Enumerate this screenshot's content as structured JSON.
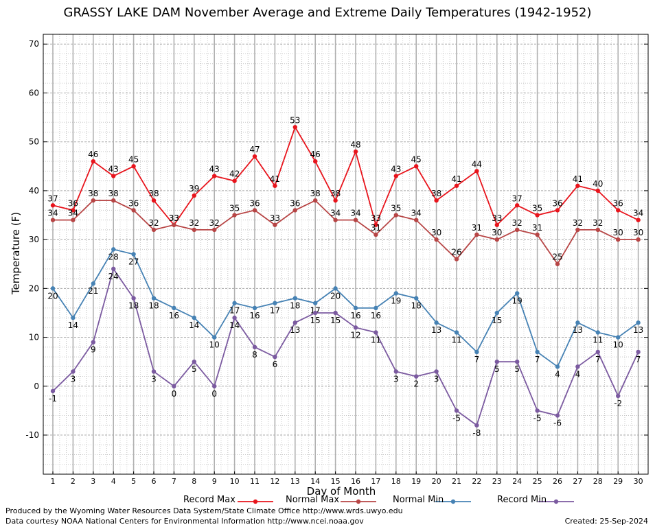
{
  "chart_data": {
    "type": "line",
    "title": "GRASSY LAKE DAM November Average and Extreme Daily Temperatures (1942-1952)",
    "xlabel": "Day of Month",
    "ylabel": "Temperature (F)",
    "ylim": [
      -18,
      72
    ],
    "yticks": [
      -10,
      0,
      10,
      20,
      30,
      40,
      50,
      60,
      70
    ],
    "x": [
      1,
      2,
      3,
      4,
      5,
      6,
      7,
      8,
      9,
      10,
      11,
      12,
      13,
      14,
      15,
      16,
      17,
      18,
      19,
      20,
      21,
      22,
      23,
      24,
      25,
      26,
      27,
      28,
      29,
      30
    ],
    "grid": true,
    "legend_position": "bottom",
    "series": [
      {
        "name": "Record Max",
        "color": "#e8141c",
        "values": [
          37,
          36,
          46,
          43,
          45,
          38,
          33,
          39,
          43,
          42,
          47,
          41,
          53,
          46,
          38,
          48,
          33,
          43,
          45,
          38,
          41,
          44,
          33,
          37,
          35,
          36,
          41,
          40,
          36,
          34
        ]
      },
      {
        "name": "Normal Max",
        "color": "#b74545",
        "values": [
          34,
          34,
          38,
          38,
          36,
          32,
          33,
          32,
          32,
          35,
          36,
          33,
          36,
          38,
          34,
          34,
          31,
          35,
          34,
          30,
          26,
          31,
          30,
          32,
          31,
          25,
          32,
          32,
          30,
          30
        ]
      },
      {
        "name": "Normal Min",
        "color": "#4682b4",
        "values": [
          20,
          14,
          21,
          28,
          27,
          18,
          16,
          14,
          10,
          17,
          16,
          17,
          18,
          17,
          20,
          16,
          16,
          19,
          18,
          13,
          11,
          7,
          15,
          19,
          7,
          4,
          13,
          11,
          10,
          13
        ]
      },
      {
        "name": "Record Min",
        "color": "#7b5aa0",
        "values": [
          -1,
          3,
          9,
          24,
          18,
          3,
          0,
          5,
          0,
          14,
          8,
          6,
          13,
          15,
          15,
          12,
          11,
          3,
          2,
          3,
          -5,
          -8,
          5,
          5,
          -5,
          -6,
          4,
          7,
          -2,
          7
        ]
      }
    ]
  },
  "footer": {
    "produced_by": "Produced by the Wyoming Water Resources Data System/State Climate Office http://www.wrds.uwyo.edu",
    "courtesy": "Data courtesy NOAA National Centers for Environmental Information http://www.ncei.noaa.gov",
    "created": "Created:  25-Sep-2024"
  }
}
